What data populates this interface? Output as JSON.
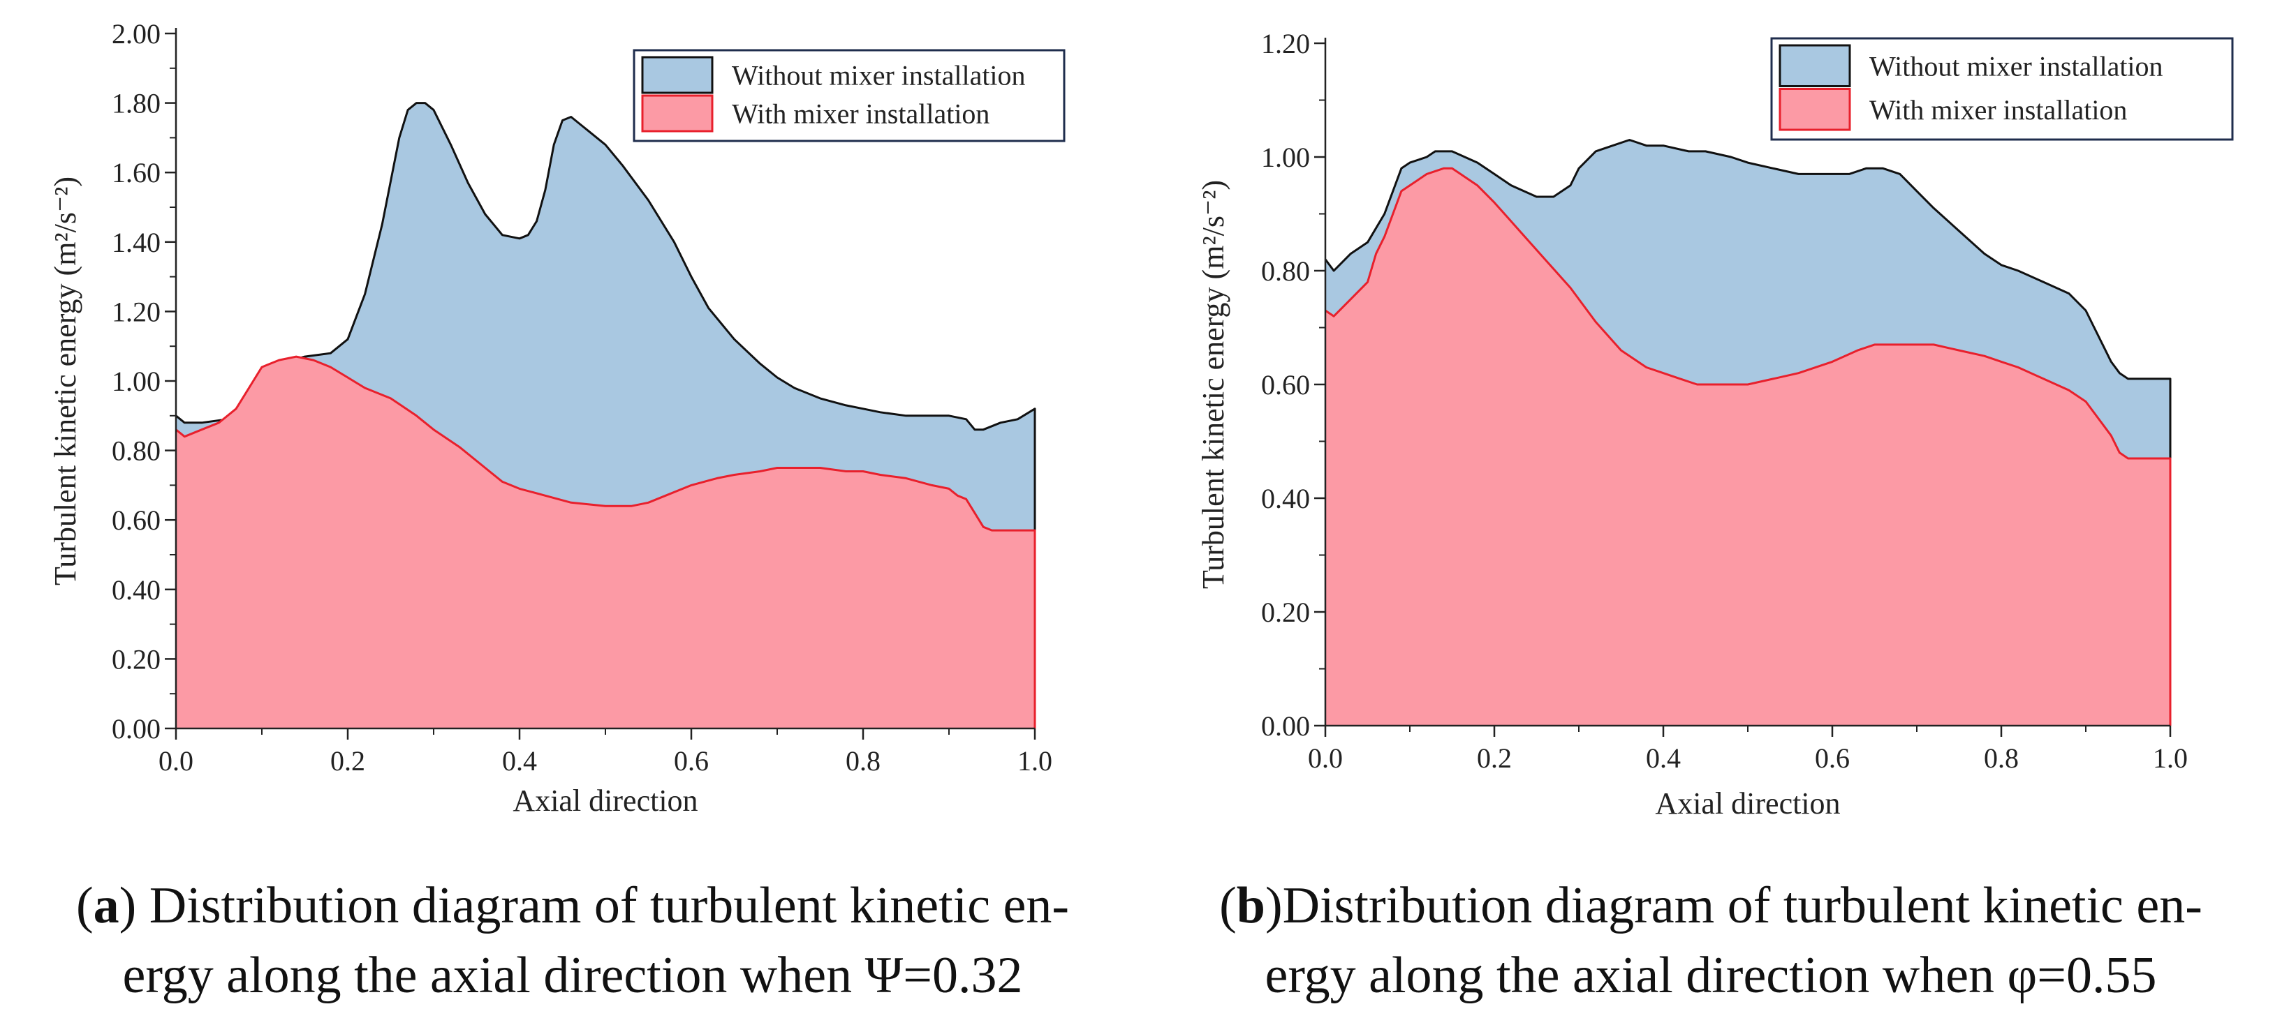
{
  "chart_data": [
    {
      "type": "area",
      "title": "",
      "xlabel": "Axial direction",
      "ylabel": "Turbulent kinetic energy (m²/s⁻²)",
      "xlim": [
        0,
        1.0
      ],
      "ylim": [
        0,
        2.0
      ],
      "xticks": [
        0.0,
        0.2,
        0.4,
        0.6,
        0.8,
        1.0
      ],
      "xtick_labels": [
        "0.0",
        "0.2",
        "0.4",
        "0.6",
        "0.8",
        "1.0"
      ],
      "yticks": [
        0,
        0.2,
        0.4,
        0.6,
        0.8,
        1.0,
        1.2,
        1.4,
        1.6,
        1.8,
        2.0
      ],
      "ytick_labels": [
        "0.00",
        "0.20",
        "0.40",
        "0.60",
        "0.80",
        "1.00",
        "1.20",
        "1.40",
        "1.60",
        "1.80",
        "2.00"
      ],
      "legend_position": "top-right",
      "series": [
        {
          "name": "Without mixer installation",
          "fill": "#a9c8e1",
          "stroke": "#111111",
          "x": [
            0,
            0.01,
            0.03,
            0.06,
            0.08,
            0.1,
            0.12,
            0.15,
            0.18,
            0.2,
            0.22,
            0.24,
            0.26,
            0.27,
            0.28,
            0.29,
            0.3,
            0.32,
            0.34,
            0.36,
            0.38,
            0.4,
            0.41,
            0.42,
            0.43,
            0.44,
            0.45,
            0.46,
            0.47,
            0.48,
            0.5,
            0.52,
            0.55,
            0.58,
            0.6,
            0.62,
            0.65,
            0.68,
            0.7,
            0.72,
            0.75,
            0.78,
            0.8,
            0.82,
            0.85,
            0.88,
            0.9,
            0.92,
            0.93,
            0.94,
            0.96,
            0.98,
            1.0
          ],
          "values": [
            0.9,
            0.88,
            0.88,
            0.89,
            0.93,
            1.01,
            1.05,
            1.07,
            1.08,
            1.12,
            1.25,
            1.45,
            1.7,
            1.78,
            1.8,
            1.8,
            1.78,
            1.68,
            1.57,
            1.48,
            1.42,
            1.41,
            1.42,
            1.46,
            1.55,
            1.68,
            1.75,
            1.76,
            1.74,
            1.72,
            1.68,
            1.62,
            1.52,
            1.4,
            1.3,
            1.21,
            1.12,
            1.05,
            1.01,
            0.98,
            0.95,
            0.93,
            0.92,
            0.91,
            0.9,
            0.9,
            0.9,
            0.89,
            0.86,
            0.86,
            0.88,
            0.89,
            0.92
          ]
        },
        {
          "name": "With mixer installation",
          "fill": "#fc9aa5",
          "stroke": "#e8202c",
          "x": [
            0,
            0.01,
            0.03,
            0.05,
            0.07,
            0.08,
            0.09,
            0.1,
            0.12,
            0.14,
            0.16,
            0.18,
            0.2,
            0.22,
            0.25,
            0.28,
            0.3,
            0.33,
            0.36,
            0.38,
            0.4,
            0.43,
            0.46,
            0.5,
            0.53,
            0.55,
            0.57,
            0.6,
            0.63,
            0.65,
            0.68,
            0.7,
            0.72,
            0.75,
            0.78,
            0.8,
            0.82,
            0.85,
            0.88,
            0.9,
            0.91,
            0.92,
            0.93,
            0.94,
            0.95,
            0.97,
            1.0
          ],
          "values": [
            0.86,
            0.84,
            0.86,
            0.88,
            0.92,
            0.96,
            1.0,
            1.04,
            1.06,
            1.07,
            1.06,
            1.04,
            1.01,
            0.98,
            0.95,
            0.9,
            0.86,
            0.81,
            0.75,
            0.71,
            0.69,
            0.67,
            0.65,
            0.64,
            0.64,
            0.65,
            0.67,
            0.7,
            0.72,
            0.73,
            0.74,
            0.75,
            0.75,
            0.75,
            0.74,
            0.74,
            0.73,
            0.72,
            0.7,
            0.69,
            0.67,
            0.66,
            0.62,
            0.58,
            0.57,
            0.57,
            0.57
          ]
        }
      ]
    },
    {
      "type": "area",
      "title": "",
      "xlabel": "Axial direction",
      "ylabel": "Turbulent kinetic energy (m²/s⁻²)",
      "xlim": [
        0,
        1.0
      ],
      "ylim": [
        0,
        1.2
      ],
      "xticks": [
        0.0,
        0.2,
        0.4,
        0.6,
        0.8,
        1.0
      ],
      "xtick_labels": [
        "0.0",
        "0.2",
        "0.4",
        "0.6",
        "0.8",
        "1.0"
      ],
      "yticks": [
        0,
        0.2,
        0.4,
        0.6,
        0.8,
        1.0,
        1.2
      ],
      "ytick_labels": [
        "0.00",
        "0.20",
        "0.40",
        "0.60",
        "0.80",
        "1.00",
        "1.20"
      ],
      "legend_position": "top-right",
      "series": [
        {
          "name": "Without mixer installation",
          "fill": "#a9c8e1",
          "stroke": "#111111",
          "x": [
            0,
            0.01,
            0.03,
            0.05,
            0.07,
            0.08,
            0.09,
            0.1,
            0.12,
            0.13,
            0.15,
            0.18,
            0.2,
            0.22,
            0.25,
            0.27,
            0.29,
            0.3,
            0.32,
            0.34,
            0.36,
            0.38,
            0.4,
            0.43,
            0.45,
            0.48,
            0.5,
            0.53,
            0.56,
            0.58,
            0.6,
            0.62,
            0.64,
            0.65,
            0.66,
            0.68,
            0.7,
            0.72,
            0.75,
            0.78,
            0.8,
            0.82,
            0.85,
            0.88,
            0.9,
            0.91,
            0.92,
            0.93,
            0.94,
            0.95,
            0.97,
            1.0
          ],
          "values": [
            0.82,
            0.8,
            0.83,
            0.85,
            0.9,
            0.94,
            0.98,
            0.99,
            1.0,
            1.01,
            1.01,
            0.99,
            0.97,
            0.95,
            0.93,
            0.93,
            0.95,
            0.98,
            1.01,
            1.02,
            1.03,
            1.02,
            1.02,
            1.01,
            1.01,
            1.0,
            0.99,
            0.98,
            0.97,
            0.97,
            0.97,
            0.97,
            0.98,
            0.98,
            0.98,
            0.97,
            0.94,
            0.91,
            0.87,
            0.83,
            0.81,
            0.8,
            0.78,
            0.76,
            0.73,
            0.7,
            0.67,
            0.64,
            0.62,
            0.61,
            0.61,
            0.61
          ]
        },
        {
          "name": "With mixer installation",
          "fill": "#fc9aa5",
          "stroke": "#e8202c",
          "x": [
            0,
            0.01,
            0.03,
            0.05,
            0.06,
            0.07,
            0.08,
            0.09,
            0.1,
            0.11,
            0.12,
            0.14,
            0.15,
            0.16,
            0.18,
            0.2,
            0.23,
            0.26,
            0.29,
            0.32,
            0.35,
            0.38,
            0.4,
            0.42,
            0.44,
            0.46,
            0.48,
            0.5,
            0.53,
            0.56,
            0.6,
            0.63,
            0.65,
            0.68,
            0.7,
            0.72,
            0.75,
            0.78,
            0.8,
            0.82,
            0.85,
            0.88,
            0.9,
            0.92,
            0.93,
            0.94,
            0.95,
            0.97,
            1.0
          ],
          "values": [
            0.73,
            0.72,
            0.75,
            0.78,
            0.83,
            0.86,
            0.9,
            0.94,
            0.95,
            0.96,
            0.97,
            0.98,
            0.98,
            0.97,
            0.95,
            0.92,
            0.87,
            0.82,
            0.77,
            0.71,
            0.66,
            0.63,
            0.62,
            0.61,
            0.6,
            0.6,
            0.6,
            0.6,
            0.61,
            0.62,
            0.64,
            0.66,
            0.67,
            0.67,
            0.67,
            0.67,
            0.66,
            0.65,
            0.64,
            0.63,
            0.61,
            0.59,
            0.57,
            0.53,
            0.51,
            0.48,
            0.47,
            0.47,
            0.47
          ]
        }
      ]
    }
  ],
  "captions": {
    "a": {
      "letter": "a",
      "line1": ") Distribution diagram of turbulent kinetic en-",
      "line2": "ergy along the axial direction when Ψ=0.32"
    },
    "b": {
      "letter": "b",
      "line1": ")Distribution diagram of turbulent kinetic en-",
      "line2": "ergy along the axial direction when φ=0.55"
    }
  }
}
